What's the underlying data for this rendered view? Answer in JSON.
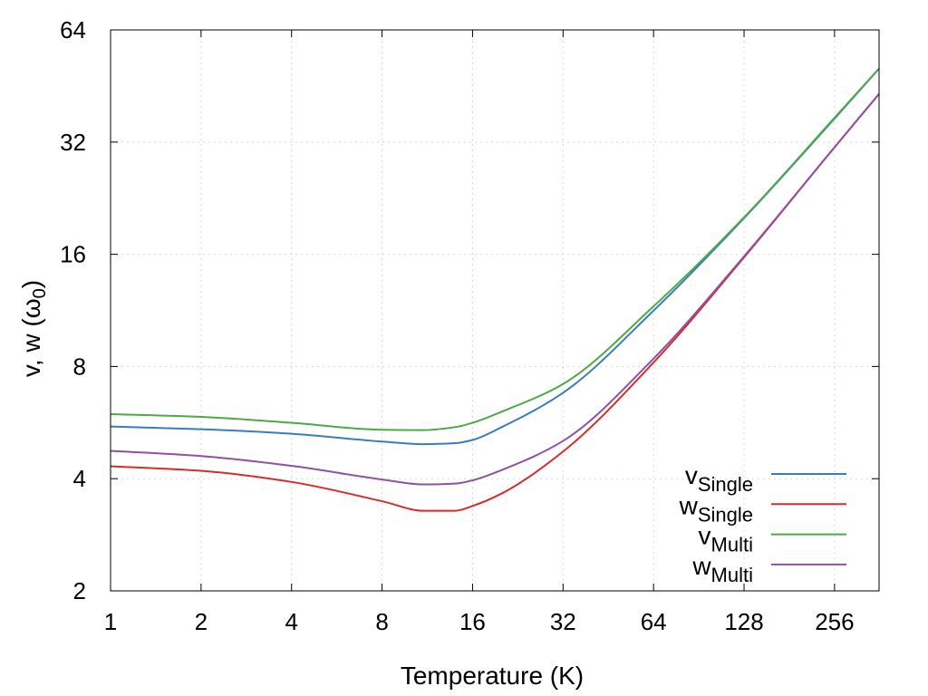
{
  "chart_data": {
    "type": "line",
    "xlabel": "Temperature (K)",
    "ylabel": "v, w (ω₀)",
    "xscale": "log2",
    "yscale": "log2",
    "xlim": [
      1,
      360
    ],
    "ylim": [
      2,
      64
    ],
    "grid": true,
    "legend_position": "bottom-right",
    "x_ticks": [
      1,
      2,
      4,
      8,
      16,
      32,
      64,
      128,
      256
    ],
    "x_tick_labels": [
      "1",
      "2",
      "4",
      "8",
      "16",
      "32",
      "64",
      "128",
      "256"
    ],
    "y_ticks": [
      2,
      4,
      8,
      16,
      32,
      64
    ],
    "y_tick_labels": [
      "2",
      "4",
      "8",
      "16",
      "32",
      "64"
    ],
    "x": [
      1,
      2,
      4,
      8,
      11,
      14,
      16,
      20,
      32,
      64,
      128,
      256,
      360
    ],
    "series": [
      {
        "name": "v",
        "name_subscript": "Single",
        "color": "#3a7dbd",
        "values": [
          5.52,
          5.43,
          5.28,
          5.03,
          4.95,
          4.98,
          5.08,
          5.5,
          6.8,
          11.3,
          20.0,
          37.0,
          50.4
        ]
      },
      {
        "name": "w",
        "name_subscript": "Single",
        "color": "#d92b2b",
        "values": [
          4.32,
          4.2,
          3.92,
          3.48,
          3.28,
          3.28,
          3.38,
          3.65,
          4.73,
          8.2,
          15.7,
          31.0,
          43.1
        ]
      },
      {
        "name": "v",
        "name_subscript": "Multi",
        "color": "#4caa45",
        "values": [
          5.96,
          5.86,
          5.65,
          5.41,
          5.4,
          5.5,
          5.65,
          6.05,
          7.18,
          11.6,
          20.1,
          37.2,
          50.4
        ]
      },
      {
        "name": "w",
        "name_subscript": "Multi",
        "color": "#9050a3",
        "values": [
          4.75,
          4.6,
          4.33,
          3.98,
          3.86,
          3.88,
          3.96,
          4.22,
          5.05,
          8.4,
          15.8,
          31.0,
          43.1
        ]
      }
    ]
  }
}
